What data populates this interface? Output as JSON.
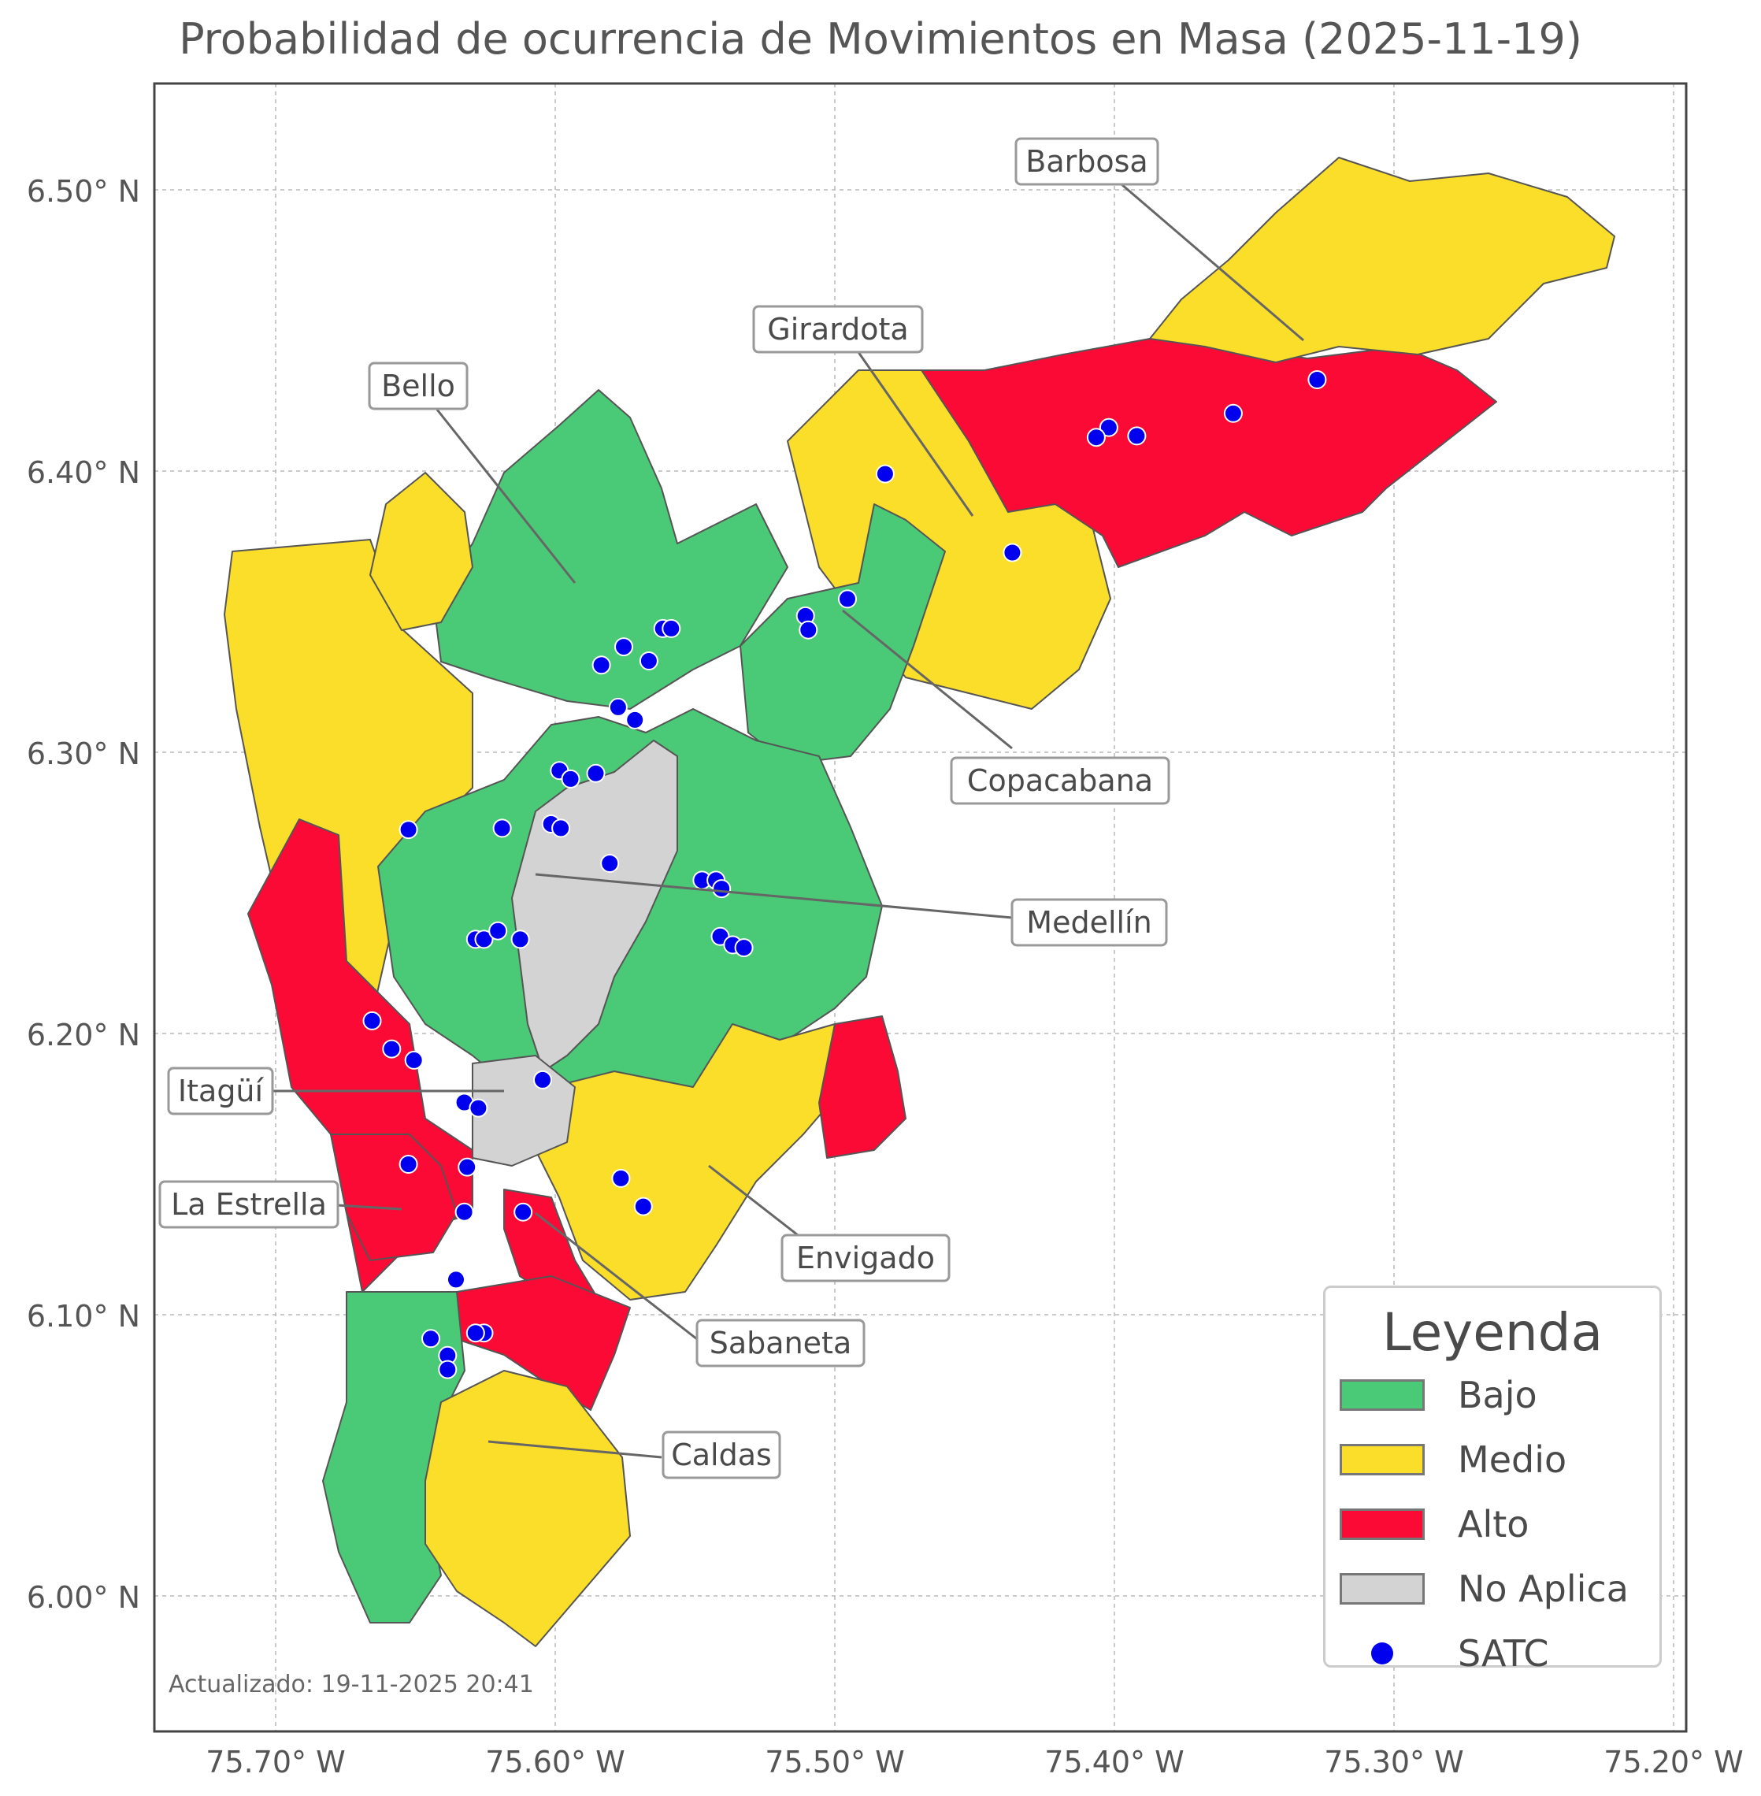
{
  "title": "Probabilidad de ocurrencia de Movimientos en Masa (2025-11-19)",
  "updated": "Actualizado: 19-11-2025 20:41",
  "axes": {
    "x_ticks": [
      "75.70° W",
      "75.60° W",
      "75.50° W",
      "75.40° W",
      "75.30° W",
      "75.20° W"
    ],
    "y_ticks": [
      "6.50° N",
      "6.40° N",
      "6.30° N",
      "6.20° N",
      "6.10° N",
      "6.00° N"
    ]
  },
  "legend": {
    "title": "Leyenda",
    "items": [
      {
        "label": "Bajo",
        "color": "#4ac977",
        "kind": "patch"
      },
      {
        "label": "Medio",
        "color": "#fbde2a",
        "kind": "patch"
      },
      {
        "label": "Alto",
        "color": "#fa0a35",
        "kind": "patch"
      },
      {
        "label": "No Aplica",
        "color": "#d3d3d3",
        "kind": "patch"
      },
      {
        "label": "SATC",
        "color": "#0000ee",
        "kind": "marker"
      }
    ]
  },
  "municipalities": [
    {
      "name": "Barbosa",
      "level": "Medio / Alto"
    },
    {
      "name": "Girardota",
      "level": "Alto / Medio"
    },
    {
      "name": "Bello",
      "level": "Bajo"
    },
    {
      "name": "Copacabana",
      "level": "Bajo"
    },
    {
      "name": "Medellín",
      "level": "Bajo / No Aplica"
    },
    {
      "name": "Itagüí",
      "level": "No Aplica"
    },
    {
      "name": "La Estrella",
      "level": "Alto"
    },
    {
      "name": "Envigado",
      "level": "Medio"
    },
    {
      "name": "Sabaneta",
      "level": "Alto"
    },
    {
      "name": "Caldas",
      "level": "Medio / Bajo"
    }
  ],
  "satc_points": [
    [
      -75.3275,
      6.4325
    ],
    [
      -75.3575,
      6.4205
    ],
    [
      -75.392,
      6.4125
    ],
    [
      -75.402,
      6.4155
    ],
    [
      -75.4065,
      6.412
    ],
    [
      -75.482,
      6.399
    ],
    [
      -75.4365,
      6.371
    ],
    [
      -75.4955,
      6.3545
    ],
    [
      -75.5105,
      6.3485
    ],
    [
      -75.5095,
      6.3435
    ],
    [
      -75.5615,
      6.344
    ],
    [
      -75.5585,
      6.344
    ],
    [
      -75.5755,
      6.3375
    ],
    [
      -75.5665,
      6.3325
    ],
    [
      -75.5835,
      6.331
    ],
    [
      -75.5775,
      6.316
    ],
    [
      -75.5715,
      6.3115
    ],
    [
      -75.5985,
      6.2935
    ],
    [
      -75.5945,
      6.2905
    ],
    [
      -75.5855,
      6.2925
    ],
    [
      -75.6015,
      6.2745
    ],
    [
      -75.598,
      6.273
    ],
    [
      -75.619,
      6.273
    ],
    [
      -75.6525,
      6.2725
    ],
    [
      -75.5805,
      6.2605
    ],
    [
      -75.5475,
      6.2545
    ],
    [
      -75.5425,
      6.2545
    ],
    [
      -75.5405,
      6.2515
    ],
    [
      -75.6285,
      6.2335
    ],
    [
      -75.6255,
      6.2335
    ],
    [
      -75.6205,
      6.2365
    ],
    [
      -75.6125,
      6.2335
    ],
    [
      -75.541,
      6.2345
    ],
    [
      -75.5365,
      6.2315
    ],
    [
      -75.5325,
      6.2305
    ],
    [
      -75.6655,
      6.2045
    ],
    [
      -75.6585,
      6.1945
    ],
    [
      -75.6505,
      6.1905
    ],
    [
      -75.6045,
      6.1835
    ],
    [
      -75.6325,
      6.1755
    ],
    [
      -75.6275,
      6.1735
    ],
    [
      -75.6525,
      6.1535
    ],
    [
      -75.6315,
      6.1525
    ],
    [
      -75.5765,
      6.1485
    ],
    [
      -75.5685,
      6.1385
    ],
    [
      -75.6325,
      6.1365
    ],
    [
      -75.6115,
      6.1365
    ],
    [
      -75.6355,
      6.1125
    ],
    [
      -75.6255,
      6.0935
    ],
    [
      -75.6285,
      6.0935
    ],
    [
      -75.6445,
      6.0915
    ],
    [
      -75.6385,
      6.0855
    ],
    [
      -75.6385,
      6.0805
    ]
  ]
}
